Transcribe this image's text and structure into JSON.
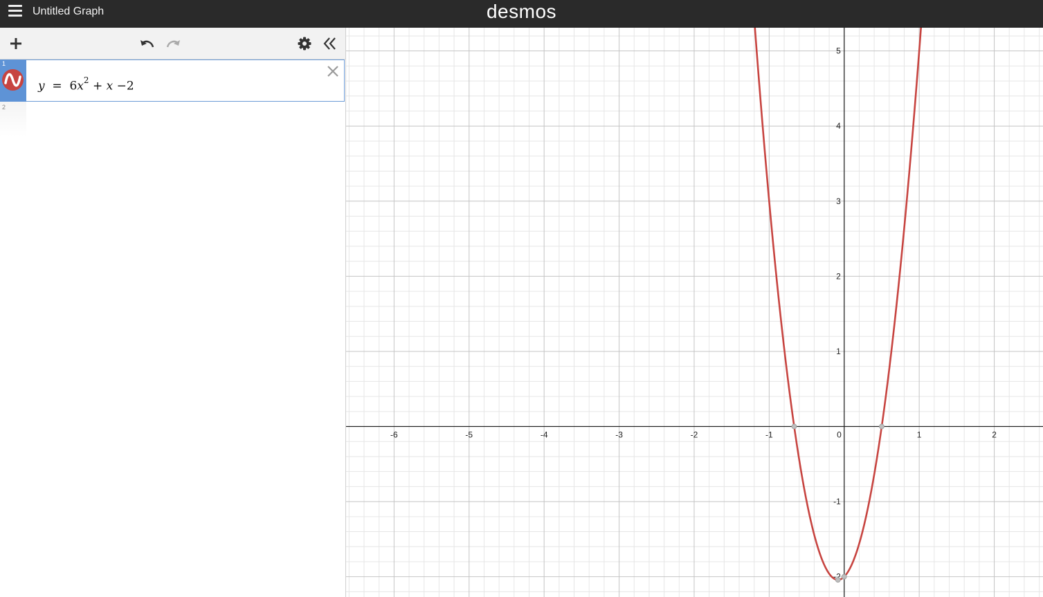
{
  "header": {
    "title": "Untitled Graph",
    "brand": "desmos"
  },
  "toolbar": {
    "icons": [
      "plus-icon",
      "undo-icon",
      "redo-icon",
      "gear-icon",
      "collapse-icon"
    ]
  },
  "expressions": [
    {
      "index": "1",
      "color": "#c74440",
      "lhs": "y",
      "eq": "=",
      "coef": "6",
      "var": "x",
      "exp": "2",
      "rest_plus": "+",
      "rest_var": "x",
      "rest_minus": "−2"
    },
    {
      "index": "2"
    }
  ],
  "chart_data": {
    "type": "line",
    "series": [
      {
        "formula": "6x^2 + x - 2",
        "color": "#c74440"
      }
    ],
    "xlim": [
      -6.64,
      2.65
    ],
    "ylim": [
      -2.27,
      5.31
    ],
    "grid": true,
    "x_ticks": [
      "-6",
      "-5",
      "-4",
      "-3",
      "-2",
      "-1",
      "0",
      "1",
      "2"
    ],
    "y_ticks": [
      "-2",
      "-1",
      "1",
      "2",
      "3",
      "4",
      "5"
    ],
    "points_of_interest": [
      {
        "x": -0.6667,
        "y": 0
      },
      {
        "x": 0.5,
        "y": 0
      },
      {
        "x": 0,
        "y": -2
      },
      {
        "x": -0.0833,
        "y": -2.0417
      }
    ]
  }
}
